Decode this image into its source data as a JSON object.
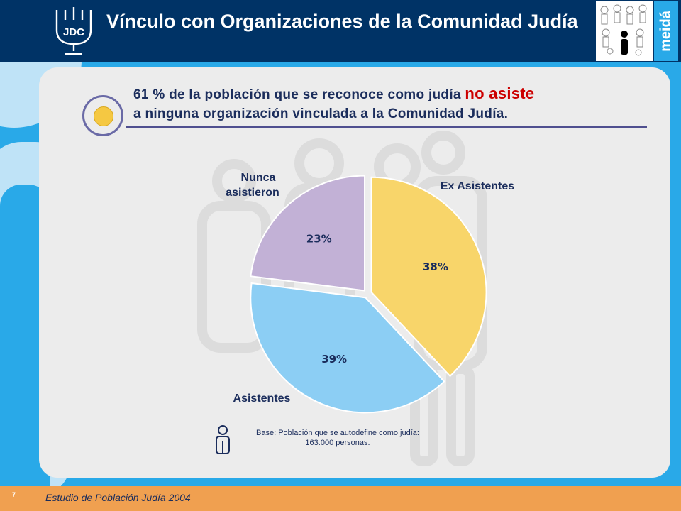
{
  "header": {
    "logo_text": "JDC",
    "title": "Vínculo con Organizaciones de la Comunidad Judía",
    "brand": "meidá"
  },
  "headline": {
    "text_before": "61 % de la población que se reconoce como judía ",
    "emphasis": "no asiste",
    "text_after": "a ninguna organización vinculada a la Comunidad Judía."
  },
  "chart_data": {
    "type": "pie",
    "title": "",
    "categories": [
      "Ex Asistentes",
      "Asistentes",
      "Nunca asistieron"
    ],
    "values": [
      38,
      39,
      23
    ],
    "value_labels": [
      "38%",
      "39%",
      "23%"
    ],
    "unit": "%",
    "colors": [
      "#f8d56a",
      "#8ccef4",
      "#c2b1d6"
    ],
    "start_angle_deg": 0,
    "direction": "clockwise",
    "exploded": true
  },
  "note": {
    "line1": "Base: Población que se autodefine  como judía:",
    "line2": "163.000 personas."
  },
  "footer": {
    "text": "Estudio de Población Judía 2004",
    "page_number": "7"
  },
  "colors": {
    "header_bg": "#003366",
    "side_bg": "#29a9e8",
    "content_bg": "#ececec",
    "footer_bg": "#f0a050",
    "accent_red": "#cc0000",
    "text_navy": "#1b2d5c"
  }
}
